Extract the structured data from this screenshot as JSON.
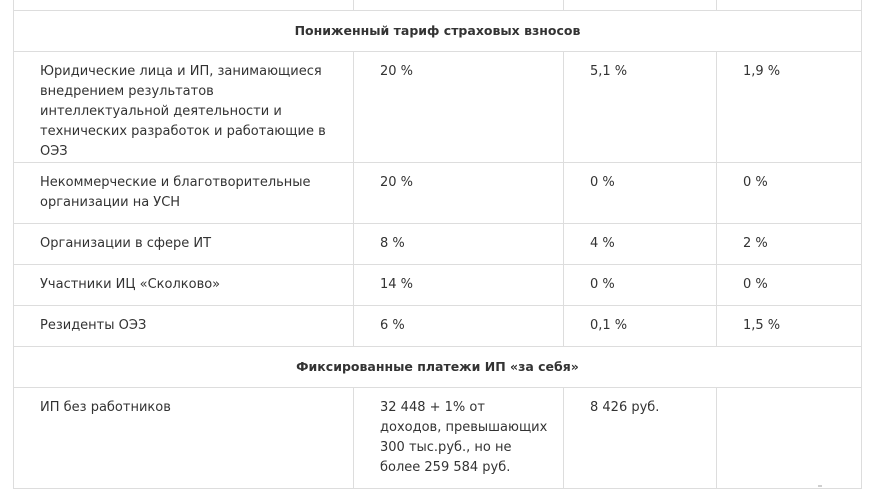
{
  "table": {
    "sections": [
      {
        "title": "Пониженный тариф страховых взносов",
        "rows": [
          {
            "category": "Юридические лица и ИП, занимающиеся внедрением результатов интеллектуальной деятельности и технических разработок и работающие в ОЭЗ",
            "c2": "20 %",
            "c3": "5,1 %",
            "c4": "1,9 %"
          },
          {
            "category": "Некоммерческие и благотворительные организации на УСН",
            "c2": "20 %",
            "c3": "0 %",
            "c4": "0 %"
          },
          {
            "category": "Организации в сфере ИТ",
            "c2": "8 %",
            "c3": "4 %",
            "c4": "2 %"
          },
          {
            "category": "Участники ИЦ «Сколково»",
            "c2": "14 %",
            "c3": "0 %",
            "c4": "0 %"
          },
          {
            "category": "Резиденты ОЭЗ",
            "c2": "6 %",
            "c3": "0,1 %",
            "c4": "1,5 %"
          }
        ]
      },
      {
        "title": "Фиксированные платежи ИП «за себя»",
        "rows": [
          {
            "category": "ИП без работников",
            "c2": "32 448 + 1% от доходов, превышающих 300 тыс.руб., но не более 259 584 руб.",
            "c3": "8 426 руб.",
            "c4": ""
          }
        ]
      }
    ]
  }
}
